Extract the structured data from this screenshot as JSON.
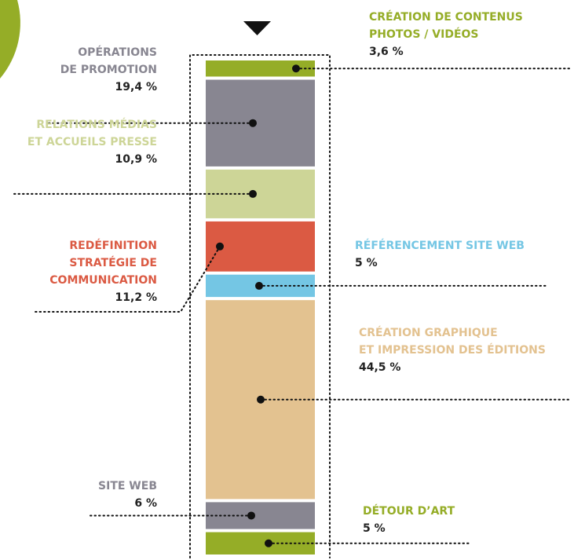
{
  "chart_data": {
    "type": "stacked-bar",
    "categories": [
      [
        "CRÉATION DE CONTENUS",
        "PHOTOS / VIDÉOS"
      ],
      [
        "OPÉRATIONS",
        "DE PROMOTION"
      ],
      [
        "RELATIONS MÉDIAS",
        "ET ACCUEILS PRESSE"
      ],
      [
        "REDÉFINITION",
        "STRATÉGIE DE",
        "COMMUNICATION"
      ],
      [
        "RÉFÉRENCEMENT SITE WEB"
      ],
      [
        "CRÉATION GRAPHIQUE",
        "ET IMPRESSION DES ÉDITIONS"
      ],
      [
        "SITE WEB"
      ],
      [
        "DÉTOUR D’ART"
      ]
    ],
    "values": [
      3.6,
      19.4,
      10.9,
      11.2,
      5,
      44.5,
      6,
      5
    ],
    "value_labels": [
      "3,6 %",
      "19,4 %",
      "10,9 %",
      "11,2 %",
      "5 %",
      "44,5 %",
      "6 %",
      "5 %"
    ],
    "colors": [
      "#95ad27",
      "#888691",
      "#cdd597",
      "#db5a43",
      "#74c6e4",
      "#e3c290",
      "#888691",
      "#95ad27"
    ]
  }
}
